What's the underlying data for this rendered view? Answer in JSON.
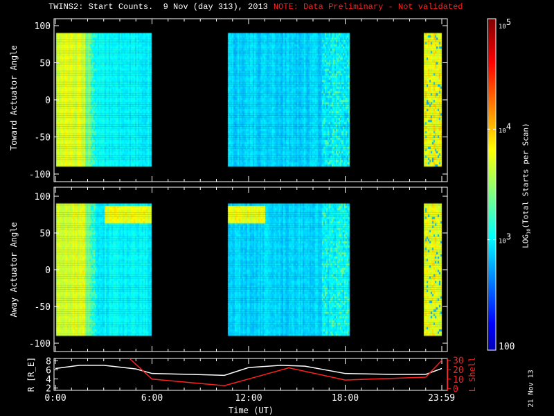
{
  "title": {
    "main": "TWINS2: Start Counts.  9 Nov (day 313), 2013",
    "note": "NOTE: Data Preliminary - Not validated"
  },
  "date_stamp": "21 Nov 13",
  "colors": {
    "note": "#ff2020",
    "lshell": "#ff2020",
    "radius": "#ffffff",
    "background": "#000000"
  },
  "chart_data": [
    {
      "type": "heatmap",
      "panel": "top",
      "ylabel": "Toward Actuator Angle",
      "ylim": [
        -110,
        110
      ],
      "yticks": [
        "100",
        "50",
        "0",
        "-50",
        "-100"
      ],
      "angle_range": [
        -90,
        90
      ],
      "coverage_hours": [
        [
          0.05,
          5.9
        ],
        [
          10.7,
          18.2
        ],
        [
          22.9,
          24.0
        ]
      ],
      "xlim_hours": [
        0,
        24
      ]
    },
    {
      "type": "heatmap",
      "panel": "middle",
      "ylabel": "Away Actuator Angle",
      "ylim": [
        -110,
        110
      ],
      "yticks": [
        "100",
        "50",
        "0",
        "-50",
        "-100"
      ],
      "angle_range": [
        -90,
        90
      ],
      "coverage_hours": [
        [
          0.05,
          5.9
        ],
        [
          10.7,
          18.2
        ],
        [
          22.9,
          24.0
        ]
      ],
      "xlim_hours": [
        0,
        24
      ]
    },
    {
      "type": "line",
      "panel": "bottom",
      "xlabel": "Time (UT)",
      "xticks": [
        "0:00",
        "6:00",
        "12:00",
        "18:00",
        "23:59"
      ],
      "ylabel_left": "R [R_E]",
      "yticks_left": [
        "2",
        "4",
        "6",
        "8"
      ],
      "ylim_left": [
        1.5,
        8.5
      ],
      "ylabel_right": "L Shell",
      "yticks_right": [
        "0",
        "10",
        "20",
        "30"
      ],
      "ylim_right": [
        -2,
        32
      ],
      "series": [
        {
          "axis": "left",
          "x": [
            0,
            1.5,
            3,
            5,
            6,
            8.5,
            10.5,
            12,
            14,
            15.5,
            18,
            21,
            23,
            24
          ],
          "y": [
            6.3,
            7.0,
            7.0,
            6.2,
            5.2,
            5.0,
            4.8,
            6.5,
            7.0,
            6.8,
            5.2,
            5.0,
            5.0,
            6.3
          ]
        },
        {
          "axis": "right",
          "x": [
            4.6,
            6,
            10.5,
            14.5,
            18,
            23,
            24
          ],
          "y": [
            32,
            10,
            3,
            22,
            9,
            12,
            30
          ]
        }
      ]
    },
    {
      "type": "colorbar",
      "label": "LOG10(Total Starts per Scan)",
      "label_main": "LOG",
      "label_sub": "10",
      "label_rest": "(Total Starts per Scan)",
      "scale": "log",
      "range": [
        100,
        100000
      ],
      "ticks": [
        "100",
        "10",
        "10",
        "10"
      ],
      "tick_exp": [
        "",
        "3",
        "4",
        "5"
      ]
    }
  ]
}
